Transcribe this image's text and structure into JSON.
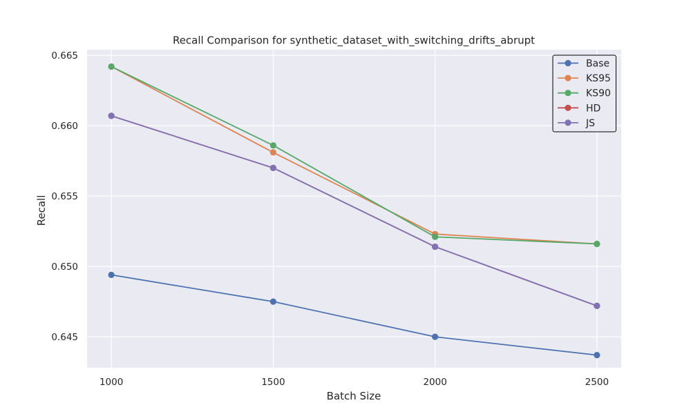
{
  "chart_data": {
    "type": "line",
    "title": "Recall Comparison for synthetic_dataset_with_switching_drifts_abrupt",
    "xlabel": "Batch Size",
    "ylabel": "Recall",
    "x": [
      1000,
      1500,
      2000,
      2500
    ],
    "x_tick_labels": [
      "1000",
      "1500",
      "2000",
      "2500"
    ],
    "y_ticks": [
      0.645,
      0.65,
      0.655,
      0.66,
      0.665
    ],
    "y_tick_labels": [
      "0.645",
      "0.650",
      "0.655",
      "0.660",
      "0.665"
    ],
    "ylim": [
      0.6428,
      0.6654
    ],
    "xlim": [
      925,
      2575
    ],
    "grid": true,
    "legend_position": "upper right",
    "series": [
      {
        "name": "Base",
        "color": "#4c72b0",
        "values": [
          0.6494,
          0.6475,
          0.645,
          0.6437
        ]
      },
      {
        "name": "KS95",
        "color": "#dd8452",
        "values": [
          0.6642,
          0.6581,
          0.6523,
          0.6516
        ]
      },
      {
        "name": "KS90",
        "color": "#55a868",
        "values": [
          0.6642,
          0.6586,
          0.6521,
          0.6516
        ]
      },
      {
        "name": "HD",
        "color": "#c44e52",
        "values": [
          0.6607,
          0.657,
          0.6514,
          0.6472
        ]
      },
      {
        "name": "JS",
        "color": "#8172b3",
        "values": [
          0.6607,
          0.657,
          0.6514,
          0.6472
        ]
      }
    ]
  }
}
